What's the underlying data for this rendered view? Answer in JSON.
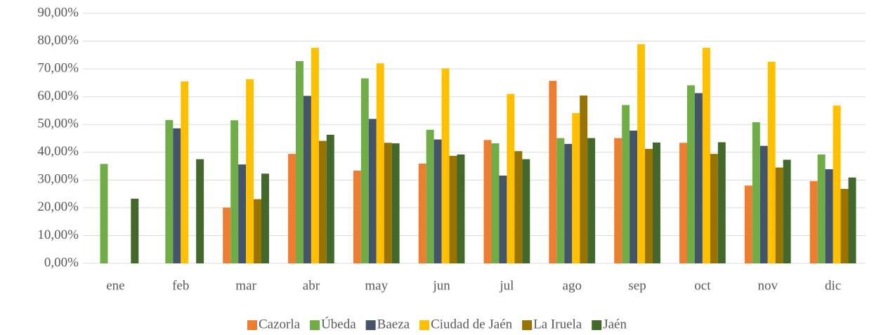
{
  "chart_data": {
    "type": "bar",
    "categories": [
      "ene",
      "feb",
      "mar",
      "abr",
      "may",
      "jun",
      "jul",
      "ago",
      "sep",
      "oct",
      "nov",
      "dic"
    ],
    "series": [
      {
        "name": "Cazorla",
        "color": "#ED7D31",
        "values": [
          null,
          null,
          20.1,
          39.4,
          33.4,
          35.9,
          44.4,
          65.7,
          45.1,
          43.4,
          28.0,
          29.6
        ]
      },
      {
        "name": "Úbeda",
        "color": "#70AD47",
        "values": [
          35.8,
          51.6,
          51.5,
          72.8,
          66.6,
          48.1,
          43.2,
          45.1,
          57.0,
          64.1,
          50.8,
          39.2
        ]
      },
      {
        "name": "Baeza",
        "color": "#44546A",
        "values": [
          null,
          48.6,
          35.6,
          60.3,
          52.0,
          44.6,
          31.6,
          43.0,
          47.8,
          61.3,
          42.3,
          33.9
        ]
      },
      {
        "name": "Ciudad de Jaén",
        "color": "#FFC000",
        "values": [
          null,
          65.5,
          66.3,
          77.6,
          72.0,
          70.2,
          61.0,
          54.1,
          78.9,
          77.6,
          72.6,
          56.8
        ]
      },
      {
        "name": "La Iruela",
        "color": "#997300",
        "values": [
          null,
          null,
          23.1,
          44.1,
          43.4,
          38.7,
          40.4,
          60.4,
          41.2,
          39.4,
          34.5,
          26.8
        ]
      },
      {
        "name": "Jaén",
        "color": "#43682B",
        "values": [
          23.3,
          37.5,
          32.3,
          46.3,
          43.2,
          39.2,
          37.5,
          45.1,
          43.5,
          43.6,
          37.3,
          30.9
        ]
      }
    ],
    "ylim": [
      0,
      90
    ],
    "yticks": [
      {
        "value": 0,
        "label": "0,00%"
      },
      {
        "value": 10,
        "label": "10,00%"
      },
      {
        "value": 20,
        "label": "20,00%"
      },
      {
        "value": 30,
        "label": "30,00%"
      },
      {
        "value": 40,
        "label": "40,00%"
      },
      {
        "value": 50,
        "label": "50,00%"
      },
      {
        "value": 60,
        "label": "60,00%"
      },
      {
        "value": 70,
        "label": "70,00%"
      },
      {
        "value": 80,
        "label": "80,00%"
      },
      {
        "value": 90,
        "label": "90,00%"
      }
    ],
    "grid": true,
    "legend": "bottom"
  }
}
